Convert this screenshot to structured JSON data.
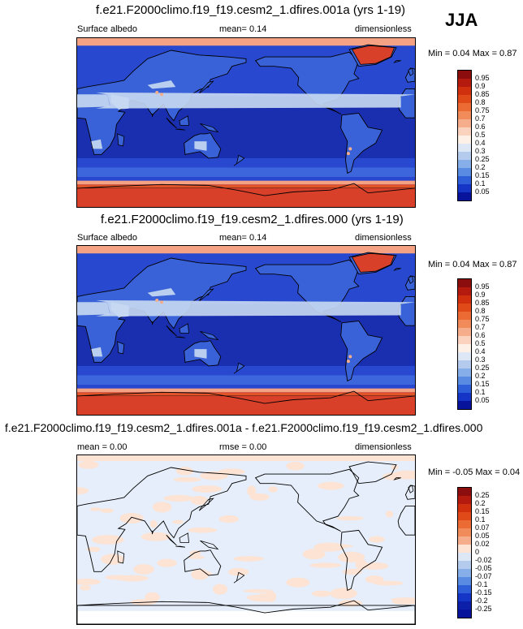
{
  "season": "JJA",
  "panels": [
    {
      "title": "f.e21.F2000climo.f19_f19.cesm2_1.dfires.001a (yrs 1-19)",
      "left_label": "Surface albedo",
      "center_label": "mean=  0.14",
      "right_label": "dimensionless",
      "minmax": "Min =  0.04 Max =  0.87",
      "scale": "abs"
    },
    {
      "title": "f.e21.F2000climo.f19_f19.cesm2_1.dfires.000 (yrs 1-19)",
      "left_label": "Surface albedo",
      "center_label": "mean=  0.14",
      "right_label": "dimensionless",
      "minmax": "Min =  0.04 Max =  0.87",
      "scale": "abs"
    },
    {
      "title": "f.e21.F2000climo.f19_f19.cesm2_1.dfires.001a - f.e21.F2000climo.f19_f19.cesm2_1.dfires.000",
      "left_label": "mean =  0.00",
      "center_label": "rmse =  0.00",
      "right_label": "dimensionless",
      "minmax": "Min = -0.05 Max =  0.04",
      "scale": "diff"
    }
  ],
  "colorbars": {
    "abs": {
      "labels": [
        "0.95",
        "0.9",
        "0.85",
        "0.8",
        "0.75",
        "0.7",
        "0.6",
        "0.5",
        "0.4",
        "0.3",
        "0.25",
        "0.2",
        "0.15",
        "0.1",
        "0.05"
      ],
      "colors": [
        "#8c0d0d",
        "#b51a0f",
        "#d1300f",
        "#e04a19",
        "#ec6a33",
        "#f28b5a",
        "#f6ad8c",
        "#fbd2bd",
        "#fdf0e6",
        "#dde7f5",
        "#b4cbee",
        "#86aee8",
        "#5a8be2",
        "#2f5fd8",
        "#1535c6",
        "#07139a"
      ]
    },
    "diff": {
      "labels": [
        "0.25",
        "0.2",
        "0.15",
        "0.1",
        "0.07",
        "0.05",
        "0.02",
        "0",
        "-0.02",
        "-0.05",
        "-0.07",
        "-0.1",
        "-0.15",
        "-0.2",
        "-0.25"
      ],
      "colors": [
        "#8c0d0d",
        "#b51a0f",
        "#d1300f",
        "#e04a19",
        "#ec6a33",
        "#f28b5a",
        "#f6ad8c",
        "#fde3d3",
        "#dde7f5",
        "#b4cbee",
        "#86aee8",
        "#5a8be2",
        "#2f5fd8",
        "#1535c6",
        "#0b1fa8",
        "#07139a"
      ]
    }
  },
  "map_colors": {
    "ocean_deep": "#1a2fb0",
    "ocean_mid": "#2848cf",
    "ocean_light": "#3d66dc",
    "sea_ice": "#e2532a",
    "sea_ice_edge": "#f4a184",
    "land_mid": "#3a62d8",
    "desert": "#c9daf2",
    "snow": "#d8402a",
    "diff_bg": "#e5eefa",
    "diff_pos": "#fde3d3"
  }
}
